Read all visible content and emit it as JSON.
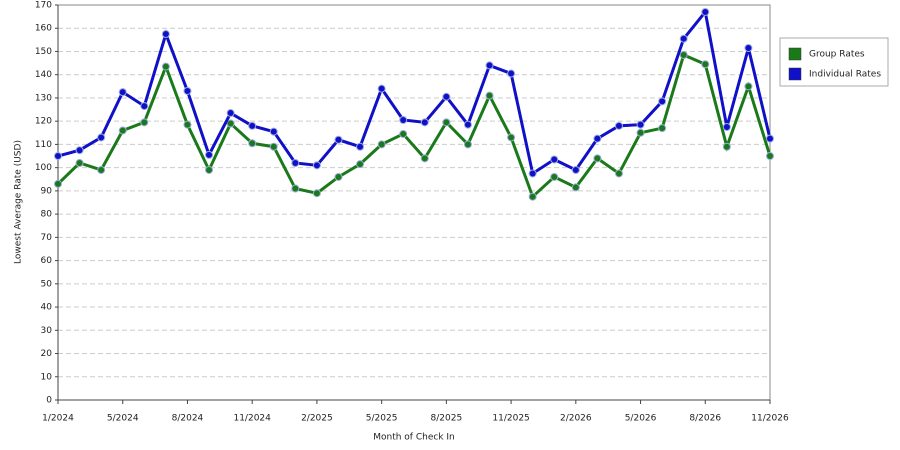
{
  "chart_data": {
    "type": "line",
    "x_label": "Month of Check In",
    "y_label": "Lowest Average Rate (USD)",
    "categories": [
      "1/2024",
      null,
      null,
      "5/2024",
      null,
      null,
      "8/2024",
      null,
      null,
      "11/2024",
      null,
      null,
      "2/2025",
      null,
      null,
      "5/2025",
      null,
      null,
      "8/2025",
      null,
      null,
      "11/2025",
      null,
      null,
      "2/2026",
      null,
      null,
      "5/2026",
      null,
      null,
      "8/2026",
      null,
      null,
      "11/2026"
    ],
    "series": [
      {
        "name": "Group Rates",
        "color": "#1a7a1a",
        "values": [
          93,
          102,
          99,
          116,
          119.5,
          143.5,
          118.5,
          99,
          119,
          110.5,
          109,
          91,
          89,
          96,
          101.5,
          110,
          114.5,
          104,
          119.5,
          110,
          131,
          113,
          87.5,
          96,
          91.5,
          104,
          97.5,
          115,
          117,
          148.5,
          144.5,
          109,
          135,
          105
        ]
      },
      {
        "name": "Individual Rates",
        "color": "#1010c8",
        "values": [
          105,
          107.5,
          113,
          132.5,
          126.5,
          157.5,
          133,
          105.5,
          123.5,
          118,
          115.5,
          102,
          101,
          112,
          109,
          134,
          120.5,
          119.5,
          130.5,
          118.5,
          144,
          140.5,
          97.5,
          103.5,
          99,
          112.5,
          118,
          118.5,
          128.5,
          155.5,
          167,
          117.5,
          151.5,
          112.5
        ]
      }
    ],
    "ylim": [
      0,
      170
    ],
    "yticks": [
      0,
      10,
      20,
      30,
      40,
      50,
      60,
      70,
      80,
      90,
      100,
      110,
      120,
      130,
      140,
      150,
      160,
      170
    ],
    "grid": true,
    "legend": "right"
  }
}
